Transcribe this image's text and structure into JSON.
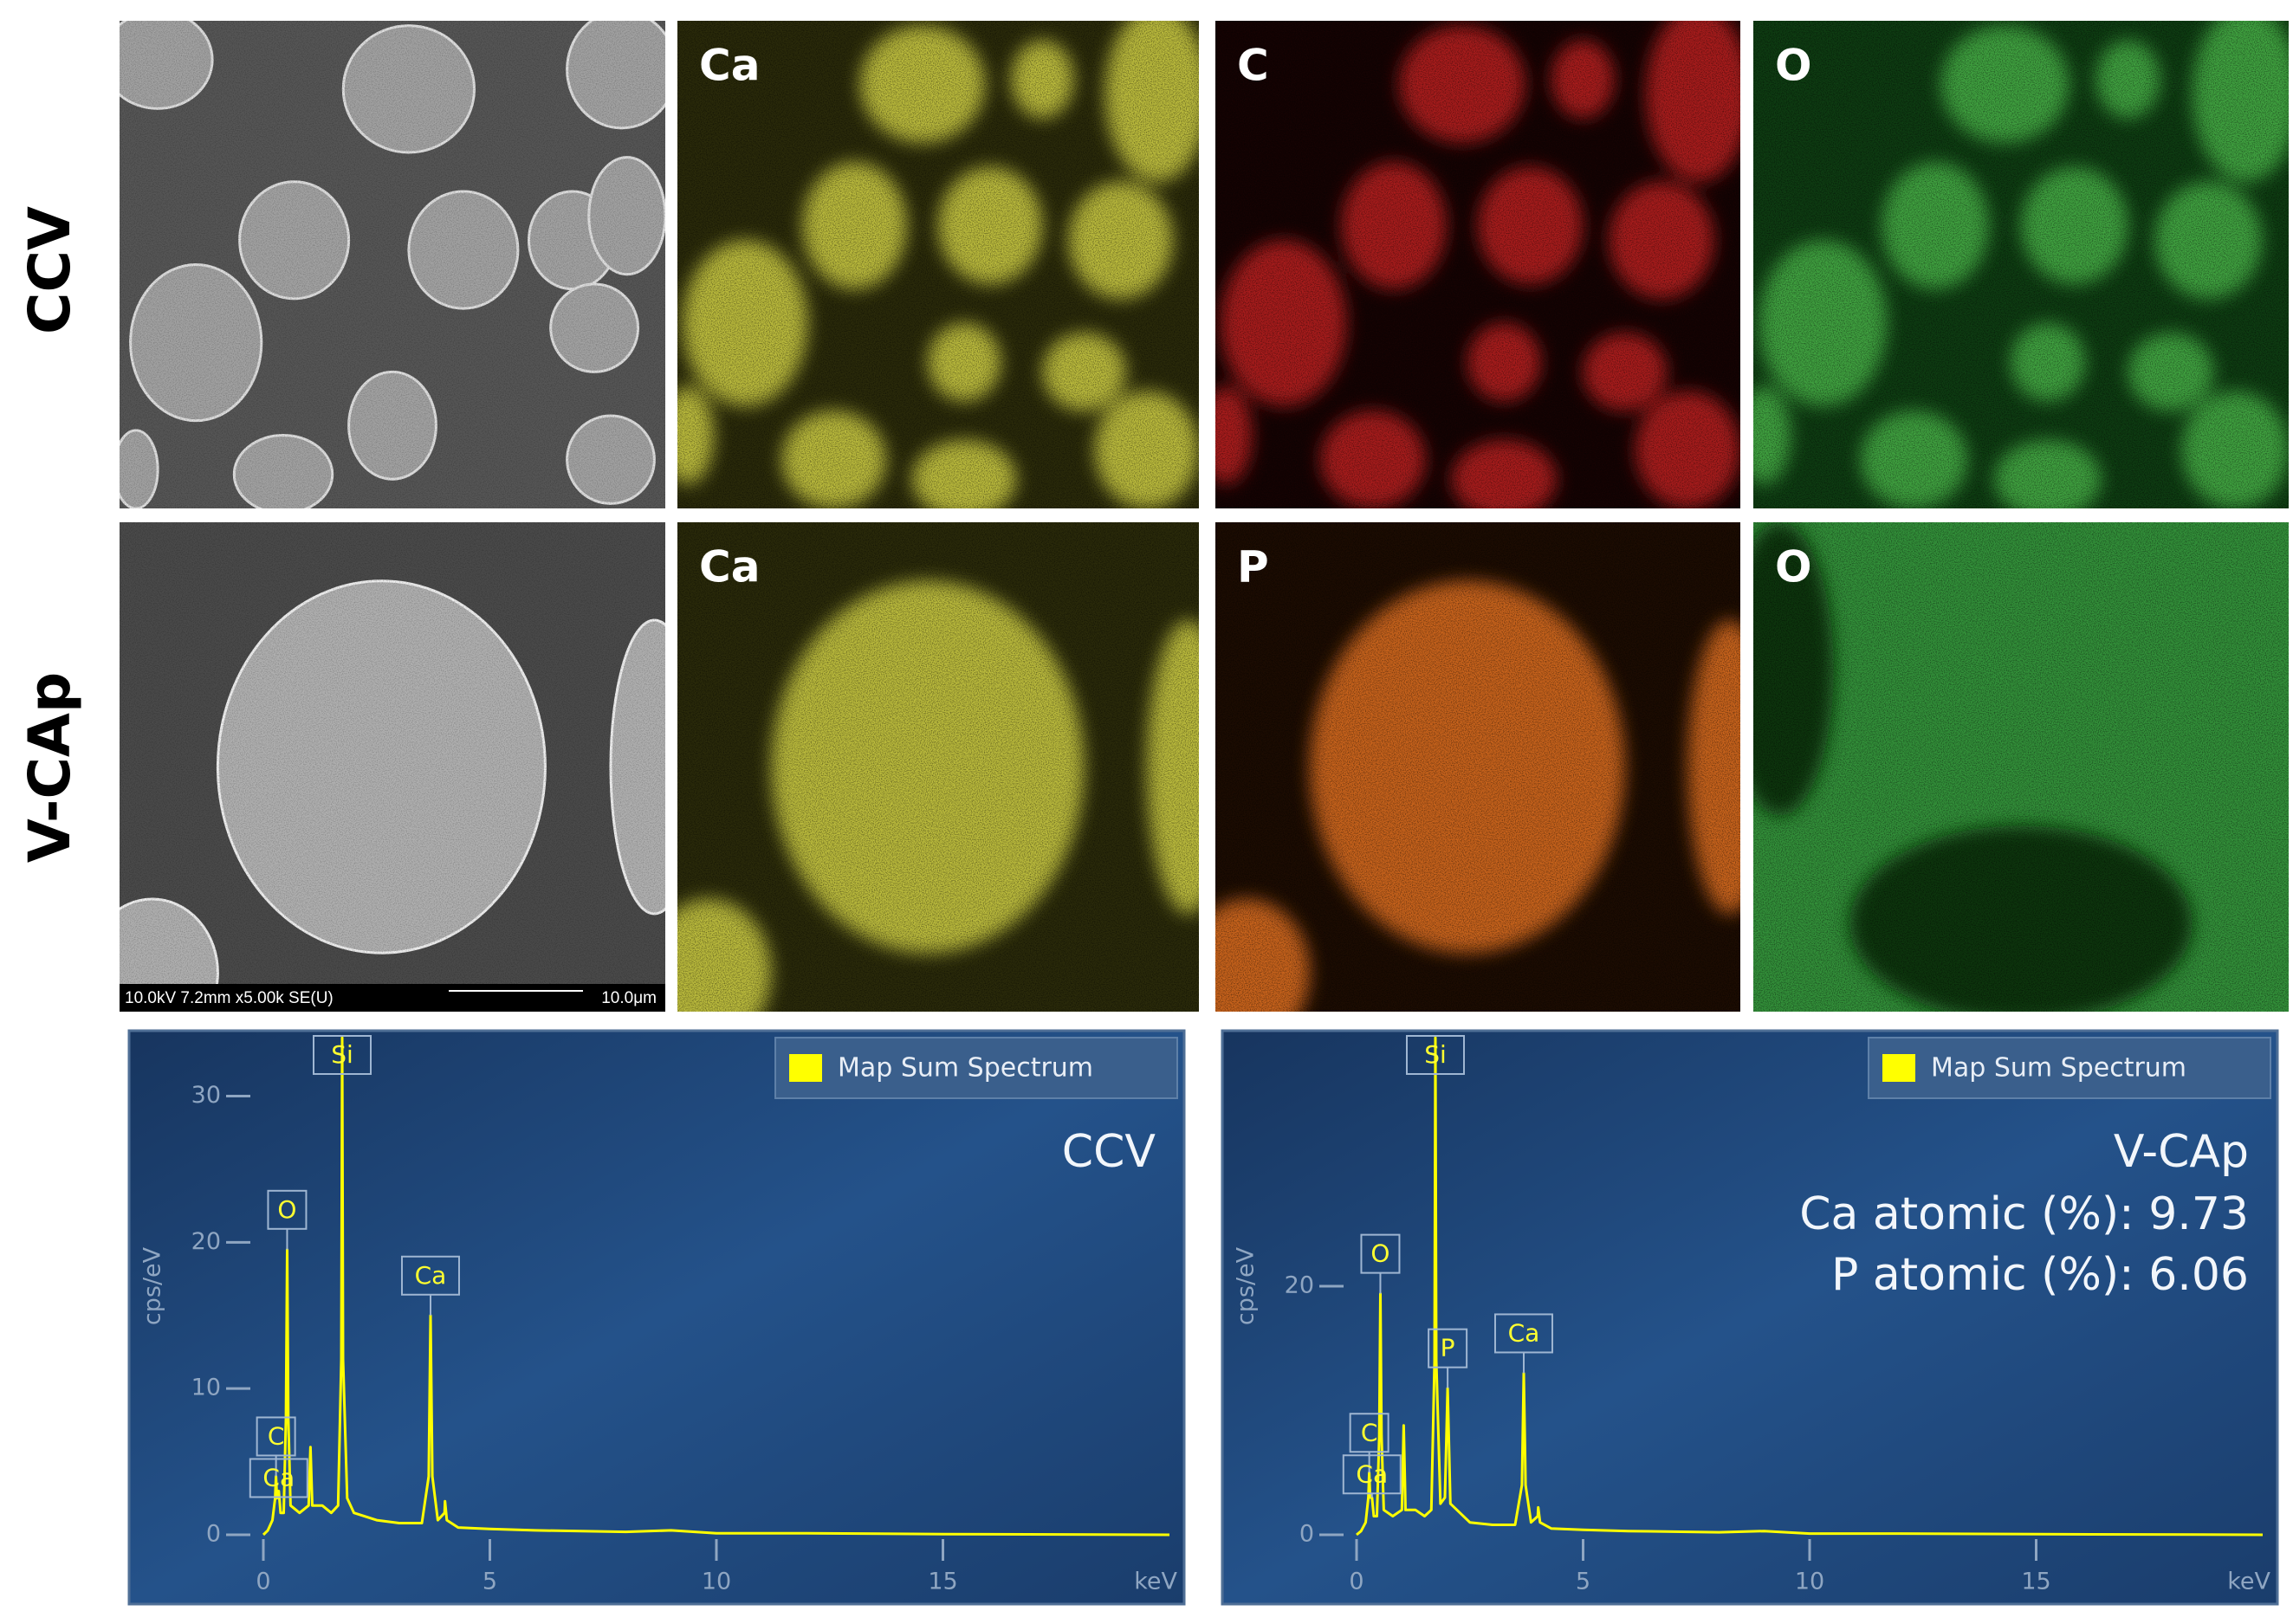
{
  "row_labels": [
    "CCV",
    "V-CAp"
  ],
  "maps": [
    [
      "Ca",
      "C",
      "O"
    ],
    [
      "Ca",
      "P",
      "O"
    ]
  ],
  "sem_info": {
    "settings": "10.0kV 7.2mm x5.00k SE(U)",
    "scale": "10.0μm"
  },
  "chart_data": [
    {
      "type": "line",
      "sample_label": "CCV",
      "ylabel": "cps/eV",
      "xlabel": "keV",
      "legend_position": "upper right",
      "xlim": [
        0,
        20
      ],
      "ylim": [
        0,
        34
      ],
      "xticks": [
        0,
        5,
        10,
        15
      ],
      "yticks": [
        0,
        10,
        20,
        30
      ],
      "x": [
        0,
        0.1,
        0.2,
        0.26,
        0.28,
        0.3,
        0.34,
        0.38,
        0.45,
        0.5,
        0.525,
        0.55,
        0.6,
        0.8,
        1.0,
        1.04,
        1.08,
        1.3,
        1.5,
        1.65,
        1.72,
        1.74,
        1.76,
        1.85,
        2.0,
        2.5,
        3.0,
        3.5,
        3.65,
        3.69,
        3.73,
        3.85,
        4.0,
        4.01,
        4.05,
        4.3,
        5,
        6,
        8,
        9,
        10,
        12,
        15,
        20
      ],
      "series": [
        {
          "name": "Map Sum Spectrum",
          "color": "#ffff00",
          "values": [
            0,
            0.3,
            1,
            2.5,
            4,
            2.5,
            3,
            1.5,
            1.5,
            8,
            19.5,
            8,
            2,
            1.5,
            2,
            6,
            2,
            2,
            1.5,
            2,
            12,
            34,
            12,
            2.5,
            1.5,
            1,
            0.8,
            0.8,
            4,
            15,
            4,
            1,
            1.5,
            2.3,
            1,
            0.5,
            0.4,
            0.3,
            0.2,
            0.3,
            0.1,
            0.1,
            0.05,
            0
          ]
        }
      ],
      "peak_labels": [
        {
          "text": "Si",
          "energy": 1.74
        },
        {
          "text": "O",
          "energy": 0.525
        },
        {
          "text": "Ca",
          "energy": 3.69
        },
        {
          "text": "C",
          "energy": 0.28
        },
        {
          "text": "Ca",
          "energy": 0.34
        }
      ]
    },
    {
      "type": "line",
      "sample_label": "V-CAp",
      "ylabel": "cps/eV",
      "xlabel": "keV",
      "legend_position": "upper right",
      "annotations": [
        "Ca atomic (%): 9.73",
        "P atomic (%): 6.06"
      ],
      "xlim": [
        0,
        20
      ],
      "ylim": [
        0,
        40
      ],
      "xticks": [
        0,
        5,
        10,
        15
      ],
      "yticks": [
        0,
        20
      ],
      "x": [
        0,
        0.1,
        0.2,
        0.26,
        0.28,
        0.3,
        0.34,
        0.38,
        0.45,
        0.5,
        0.525,
        0.55,
        0.6,
        0.8,
        1.0,
        1.04,
        1.08,
        1.3,
        1.5,
        1.65,
        1.72,
        1.74,
        1.76,
        1.85,
        1.95,
        2.01,
        2.07,
        2.5,
        3.0,
        3.5,
        3.65,
        3.69,
        3.73,
        3.85,
        4.0,
        4.01,
        4.05,
        4.3,
        5,
        6,
        8,
        9,
        10,
        12,
        15,
        20
      ],
      "series": [
        {
          "name": "Map Sum Spectrum",
          "color": "#ffff00",
          "values": [
            0,
            0.3,
            1,
            3,
            5,
            3,
            3,
            1.5,
            1.5,
            8,
            19.4,
            8,
            2,
            1.5,
            2,
            8.8,
            2,
            2,
            1.5,
            2,
            14,
            40,
            14,
            2.5,
            3,
            11.8,
            2.5,
            1,
            0.8,
            0.8,
            4,
            13,
            4,
            1,
            1.5,
            2.2,
            1,
            0.5,
            0.4,
            0.3,
            0.2,
            0.3,
            0.1,
            0.1,
            0.05,
            0
          ]
        }
      ],
      "peak_labels": [
        {
          "text": "Si",
          "energy": 1.74
        },
        {
          "text": "O",
          "energy": 0.525
        },
        {
          "text": "P",
          "energy": 2.01
        },
        {
          "text": "Ca",
          "energy": 3.69
        },
        {
          "text": "C",
          "energy": 0.28
        },
        {
          "text": "Ca",
          "energy": 0.34
        }
      ]
    }
  ]
}
